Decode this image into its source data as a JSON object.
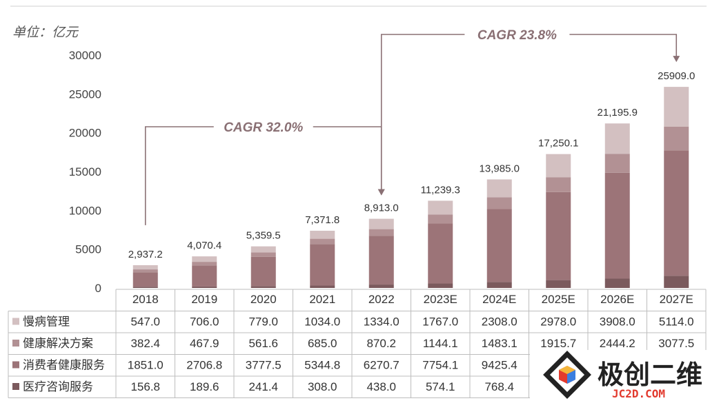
{
  "chart_data": {
    "type": "bar",
    "stacked": true,
    "unit_label": "单位：亿元",
    "categories": [
      "2018",
      "2019",
      "2020",
      "2021",
      "2022",
      "2023E",
      "2024E",
      "2025E",
      "2026E",
      "2027E"
    ],
    "series": [
      {
        "name": "医疗咨询服务",
        "color": "#7b5a5d",
        "values": [
          156.8,
          189.6,
          241.4,
          308.0,
          438.0,
          574.1,
          768.4,
          1010.4,
          1197.1,
          1569.9
        ]
      },
      {
        "name": "消费者健康服务",
        "color": "#9c7478",
        "values": [
          1851.0,
          2706.8,
          3777.5,
          5344.8,
          6270.7,
          7754.1,
          9425.4,
          11346.0,
          13646.6,
          16147.6
        ]
      },
      {
        "name": "健康解决方案",
        "color": "#b29194",
        "values": [
          382.4,
          467.9,
          561.6,
          685.0,
          870.2,
          1144.1,
          1483.1,
          1915.7,
          2444.2,
          3077.5
        ]
      },
      {
        "name": "慢病管理",
        "color": "#d3c0c1",
        "values": [
          547.0,
          706.0,
          779.0,
          1034.0,
          1334.0,
          1767.0,
          2308.0,
          2978.0,
          3908.0,
          5114.0
        ]
      }
    ],
    "totals": [
      "2,937.2",
      "4,070.4",
      "5,359.5",
      "7,371.8",
      "8,913.0",
      "11,239.3",
      "13,985.0",
      "17,250.1",
      "21,195.9",
      "25909.0"
    ],
    "yticks": [
      "0",
      "5000",
      "10000",
      "15000",
      "20000",
      "25000",
      "30000"
    ],
    "ylim": [
      0,
      30000
    ],
    "annotations": [
      {
        "text": "CAGR 32.0%",
        "from": "2018",
        "to": "2022"
      },
      {
        "text": "CAGR 23.8%",
        "from": "2022",
        "to": "2027E"
      }
    ],
    "table": {
      "row_order": [
        "慢病管理",
        "健康解决方案",
        "消费者健康服务",
        "医疗咨询服务"
      ],
      "rows": {
        "慢病管理": [
          "547.0",
          "706.0",
          "779.0",
          "1034.0",
          "1334.0",
          "1767.0",
          "2308.0",
          "2978.0",
          "3908.0",
          "5114.0"
        ],
        "健康解决方案": [
          "382.4",
          "467.9",
          "561.6",
          "685.0",
          "870.2",
          "1144.1",
          "1483.1",
          "1915.7",
          "2444.2",
          "3077.5"
        ],
        "消费者健康服务": [
          "1851.0",
          "2706.8",
          "3777.5",
          "5344.8",
          "6270.7",
          "7754.1",
          "9425.4",
          "",
          "",
          ""
        ],
        "医疗咨询服务": [
          "156.8",
          "189.6",
          "241.4",
          "308.0",
          "438.0",
          "574.1",
          "768.4",
          "",
          "",
          ""
        ]
      }
    },
    "grid": false,
    "legend": "table-left"
  },
  "watermark": {
    "text": "极创二维",
    "url": "JC2D.COM"
  }
}
